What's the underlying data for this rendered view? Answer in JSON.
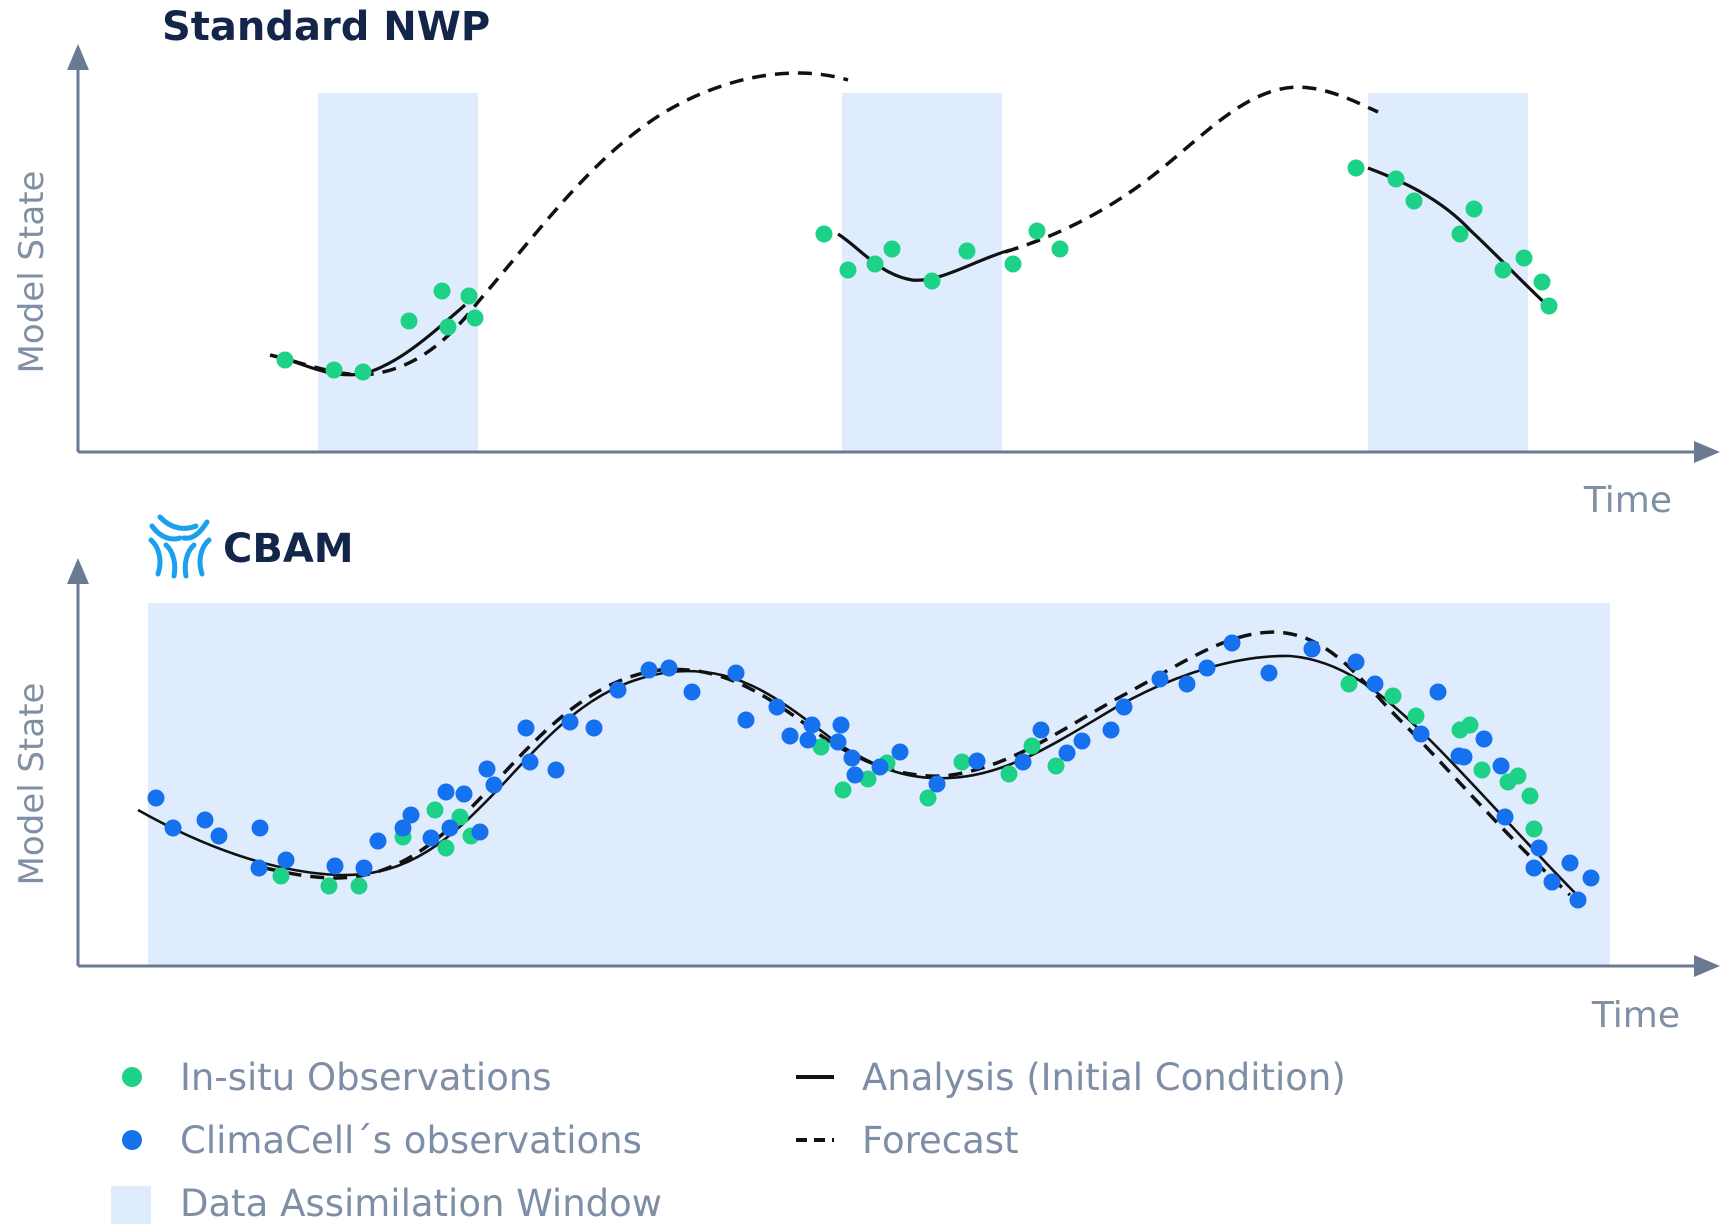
{
  "colors": {
    "in_situ": "#1dd286",
    "climacell": "#1671ee",
    "window": "#dfecfd",
    "axis": "#6a7a93",
    "line": "#111111",
    "title": "#13264a",
    "logo": "#1aa1ee"
  },
  "panels": {
    "standard": {
      "title": "Standard NWP",
      "ylabel": "Model State",
      "xlabel": "Time"
    },
    "cbam": {
      "title": "CBAM",
      "ylabel": "Model State",
      "xlabel": "Time",
      "logo_icon": "climacell-logo-icon"
    }
  },
  "legend": {
    "in_situ": "In-situ Observations",
    "climacell": "ClimaCell´s observations",
    "window": "Data Assimilation Window",
    "analysis": "Analysis (Initial Condition)",
    "forecast": "Forecast"
  }
}
